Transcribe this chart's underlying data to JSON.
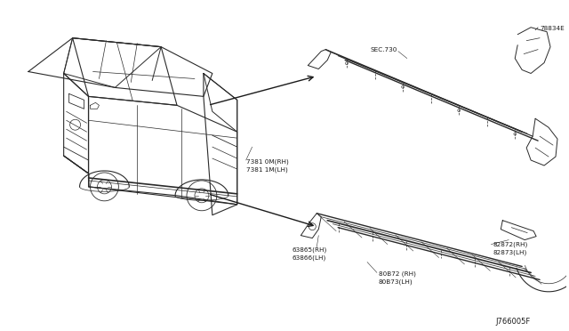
{
  "bg_color": "#ffffff",
  "fig_width": 6.4,
  "fig_height": 3.72,
  "dpi": 100,
  "diagram_id": "J766005F",
  "labels": {
    "sec730": "SEC.730",
    "part78834E": "78834E",
    "part7381M_RH": "7381 0M(RH)",
    "part7381M_LH": "7381 1M(LH)",
    "part82872_RH": "82872(RH)",
    "part82873_LH": "82873(LH)",
    "part80872_RH": "80B72 (RH)",
    "part80873_LH": "80B73(LH)",
    "part63865_RH": "63865(RH)",
    "part63866_LH": "63866(LH)"
  },
  "text_color": "#1a1a1a",
  "line_color": "#2a2a2a",
  "font_size_small": 5.2,
  "font_size_id": 6.0,
  "arrow_color": "#1a1a1a"
}
